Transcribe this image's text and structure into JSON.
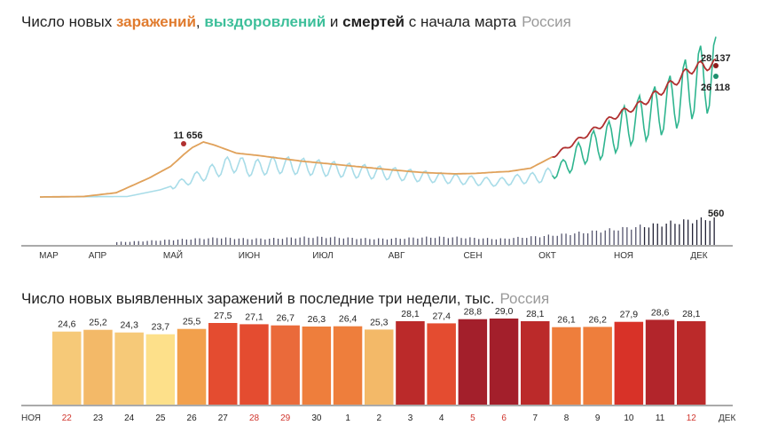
{
  "chart1": {
    "title_parts": [
      {
        "text": "Число новых ",
        "color": null
      },
      {
        "text": "заражений",
        "color": "#e07b2e"
      },
      {
        "text": ", ",
        "color": null
      },
      {
        "text": "выздоровлений",
        "color": "#3dbf9a"
      },
      {
        "text": " и ",
        "color": null
      },
      {
        "text": "смертей",
        "color": "#222222"
      },
      {
        "text": " с начала марта",
        "color": null
      }
    ],
    "region": "Россия"
  },
  "chart2": {
    "title": "Число новых выявленных заражений в последние три недели, тыс.",
    "region": "Россия"
  },
  "chart_data": [
    {
      "type": "line",
      "months": [
        "МАР",
        "АПР",
        "МАЙ",
        "ИЮН",
        "ИЮЛ",
        "АВГ",
        "СЕН",
        "ОКТ",
        "НОЯ",
        "ДЕК"
      ],
      "series": [
        {
          "name": "заражений",
          "color": "#e0a15a",
          "color_recent": "#b03030",
          "points": [
            [
              0,
              0
            ],
            [
              20,
              100
            ],
            [
              35,
              900
            ],
            [
              50,
              4000
            ],
            [
              60,
              6500
            ],
            [
              66,
              9000
            ],
            [
              70,
              10500
            ],
            [
              75,
              11656
            ],
            [
              80,
              11000
            ],
            [
              90,
              9300
            ],
            [
              100,
              8800
            ],
            [
              120,
              7600
            ],
            [
              140,
              6700
            ],
            [
              160,
              5800
            ],
            [
              175,
              5200
            ],
            [
              190,
              4900
            ],
            [
              200,
              5000
            ],
            [
              210,
              5300
            ],
            [
              215,
              5400
            ],
            [
              225,
              6100
            ],
            [
              235,
              8500
            ],
            [
              245,
              11500
            ],
            [
              255,
              14500
            ],
            [
              265,
              17500
            ],
            [
              275,
              19500
            ],
            [
              290,
              24000
            ],
            [
              300,
              27500
            ],
            [
              310,
              28137
            ]
          ]
        },
        {
          "name": "выздоровлений",
          "color": "#a8dce8",
          "color_recent": "#2fb58f",
          "points": [
            [
              0,
              0
            ],
            [
              40,
              100
            ],
            [
              55,
              1500
            ],
            [
              65,
              3000
            ],
            [
              75,
              4700
            ],
            [
              85,
              6500
            ],
            [
              90,
              7200
            ],
            [
              95,
              6000
            ],
            [
              110,
              6800
            ],
            [
              125,
              6300
            ],
            [
              140,
              5700
            ],
            [
              160,
              5000
            ],
            [
              180,
              4200
            ],
            [
              200,
              3400
            ],
            [
              210,
              3100
            ],
            [
              220,
              3800
            ],
            [
              230,
              4200
            ],
            [
              240,
              6200
            ],
            [
              250,
              10000
            ],
            [
              260,
              12000
            ],
            [
              270,
              15500
            ],
            [
              280,
              17500
            ],
            [
              290,
              20000
            ],
            [
              300,
              24000
            ],
            [
              310,
              26118
            ]
          ]
        }
      ],
      "deaths": {
        "name": "смертей",
        "color": "#3a3a4e",
        "start": 35,
        "end": 310,
        "max": 560
      },
      "annotations": [
        {
          "text": "11 656",
          "day": 75,
          "value": 11656,
          "series": "заражений"
        },
        {
          "text": "28 137",
          "day": 310,
          "value": 28137,
          "series": "заражений"
        },
        {
          "text": "26 118",
          "day": 310,
          "value": 26118,
          "series": "выздоровлений"
        },
        {
          "text": "560",
          "day": 310,
          "value": 560,
          "series": "смертей"
        }
      ],
      "ylim": [
        0,
        30000
      ]
    },
    {
      "type": "bar",
      "title": "Число новых выявленных заражений в последние три недели, тыс.",
      "categories": [
        "22",
        "23",
        "24",
        "25",
        "26",
        "27",
        "28",
        "29",
        "30",
        "1",
        "2",
        "3",
        "4",
        "5",
        "6",
        "7",
        "8",
        "9",
        "10",
        "11",
        "12"
      ],
      "weekend": [
        true,
        false,
        false,
        false,
        false,
        false,
        true,
        true,
        false,
        false,
        false,
        false,
        false,
        true,
        true,
        false,
        false,
        false,
        false,
        false,
        true
      ],
      "values": [
        24.6,
        25.2,
        24.3,
        23.7,
        25.5,
        27.5,
        27.1,
        26.7,
        26.3,
        26.4,
        25.3,
        28.1,
        27.4,
        28.8,
        29.0,
        28.1,
        26.1,
        26.2,
        27.9,
        28.6,
        28.1
      ],
      "value_labels": [
        "24,6",
        "25,2",
        "24,3",
        "23,7",
        "25,5",
        "27,5",
        "27,1",
        "26,7",
        "26,3",
        "26,4",
        "25,3",
        "28,1",
        "27,4",
        "28,8",
        "29,0",
        "28,1",
        "26,1",
        "26,2",
        "27,9",
        "28,6",
        "28,1"
      ],
      "month_start": "НОЯ",
      "month_end": "ДЕК",
      "ylim": [
        0,
        30.5
      ]
    }
  ]
}
